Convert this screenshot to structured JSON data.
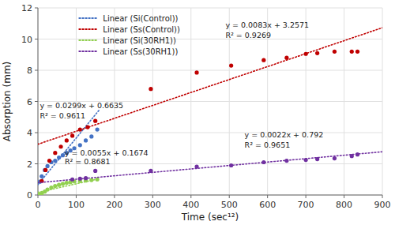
{
  "chart_data": {
    "type": "scatter",
    "xlabel": "Time (sec¹²)",
    "ylabel": "Absorption (mm)",
    "xlim": [
      0,
      900
    ],
    "ylim": [
      0,
      12
    ],
    "xticks": [
      0,
      100,
      200,
      300,
      400,
      500,
      600,
      700,
      800,
      900
    ],
    "yticks": [
      0,
      2,
      4,
      6,
      8,
      10,
      12
    ],
    "grid": true,
    "legend": "upper left",
    "series": [
      {
        "name": "Linear (Si(Control))",
        "color": "#4472C4",
        "marker": "circle",
        "line_style": "dotted",
        "x": [
          5,
          10,
          18,
          25,
          35,
          45,
          55,
          65,
          75,
          85,
          95,
          110,
          125,
          140,
          155
        ],
        "values": [
          0.85,
          1.2,
          1.6,
          1.85,
          2.1,
          2.2,
          2.4,
          2.55,
          2.7,
          2.85,
          3.0,
          3.2,
          3.5,
          3.75,
          4.2
        ],
        "trendline": {
          "slope": 0.0299,
          "intercept": 0.6635,
          "x_range": [
            0,
            160
          ]
        }
      },
      {
        "name": "Linear (Ss(Control))",
        "color": "#C00000",
        "marker": "circle",
        "line_style": "dotted",
        "x": [
          10,
          20,
          30,
          45,
          60,
          75,
          90,
          110,
          130,
          150,
          295,
          415,
          505,
          590,
          650,
          700,
          730,
          775,
          820,
          835
        ],
        "values": [
          0.9,
          1.6,
          2.2,
          2.7,
          3.1,
          3.5,
          3.8,
          4.2,
          4.35,
          4.75,
          6.8,
          7.85,
          8.3,
          8.65,
          8.8,
          9.05,
          9.1,
          9.2,
          9.2,
          9.2
        ],
        "trendline": {
          "slope": 0.0083,
          "intercept": 3.2571,
          "x_range": [
            0,
            900
          ]
        }
      },
      {
        "name": "Linear (Si(30RH1))",
        "color": "#92D050",
        "marker": "circle",
        "line_style": "dotted",
        "x": [
          5,
          10,
          18,
          25,
          35,
          45,
          55,
          65,
          75,
          85,
          95,
          110,
          125,
          140,
          155
        ],
        "values": [
          0.05,
          0.1,
          0.22,
          0.35,
          0.48,
          0.58,
          0.65,
          0.72,
          0.78,
          0.82,
          0.87,
          0.9,
          0.93,
          0.96,
          1.0
        ],
        "trendline": {
          "slope": 0.0055,
          "intercept": 0.1674,
          "x_range": [
            0,
            160
          ]
        }
      },
      {
        "name": "Linear (Ss(30RH1))",
        "color": "#7030A0",
        "marker": "circle",
        "line_style": "dotted",
        "x": [
          90,
          110,
          125,
          150,
          295,
          415,
          505,
          590,
          650,
          700,
          730,
          775,
          820,
          835
        ],
        "values": [
          1.0,
          1.05,
          1.08,
          1.55,
          1.55,
          1.82,
          1.9,
          2.1,
          2.2,
          2.25,
          2.3,
          2.35,
          2.5,
          2.6
        ],
        "trendline": {
          "slope": 0.0022,
          "intercept": 0.792,
          "x_range": [
            0,
            900
          ]
        }
      }
    ],
    "annotations": [
      {
        "text": "y = 0.0299x + 0.6635",
        "x": 5,
        "y": 5.55
      },
      {
        "text": "R² = 0.9611",
        "x": 5,
        "y": 4.9
      },
      {
        "text": "y = 0.0083x + 3.2571",
        "x": 490,
        "y": 10.75
      },
      {
        "text": "R² = 0.9269",
        "x": 490,
        "y": 10.1
      },
      {
        "text": "y = 0.0055x + 0.1674",
        "x": 70,
        "y": 2.55
      },
      {
        "text": "R² = 0.8681",
        "x": 70,
        "y": 1.95
      },
      {
        "text": "y = 0.0022x + 0.792",
        "x": 540,
        "y": 3.7
      },
      {
        "text": "R² = 0.9651",
        "x": 540,
        "y": 3.05
      }
    ]
  }
}
